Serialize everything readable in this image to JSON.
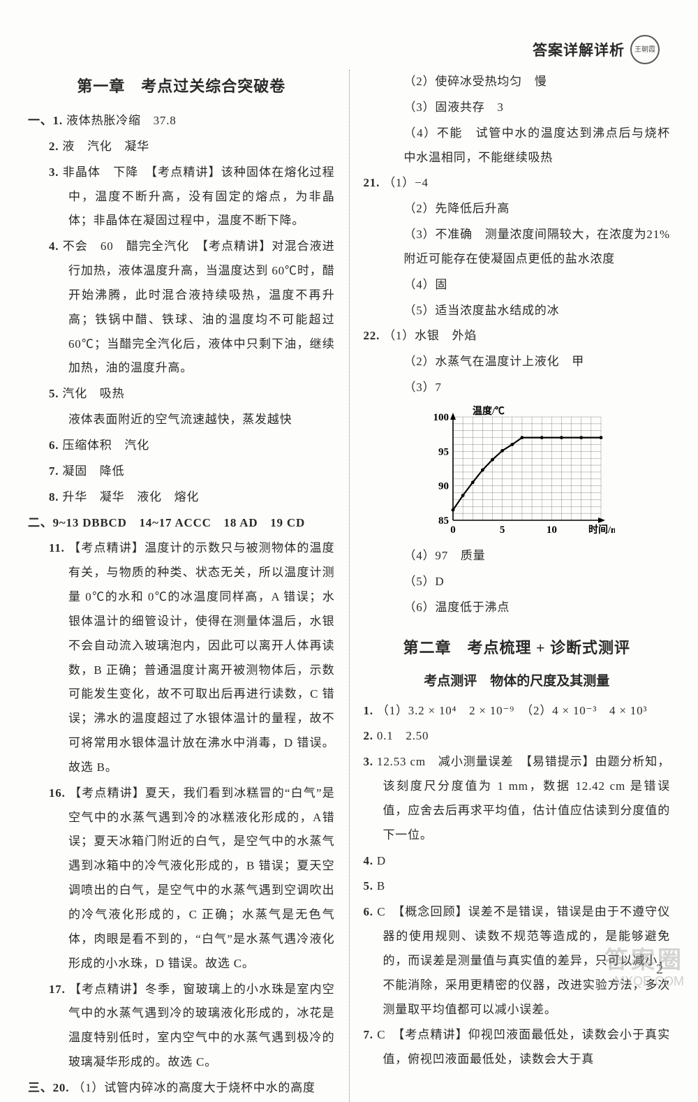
{
  "header": {
    "title": "答案详解详析",
    "seal": "王朝霞"
  },
  "left": {
    "chapter": "第一章　考点过关综合突破卷",
    "sec1_lead": "一、1. ",
    "q1": "液体热胀冷缩　37.8",
    "q2_lead": "2. ",
    "q2": "液　汽化　凝华",
    "q3_lead": "3. ",
    "q3": "非晶体　下降　【考点精讲】该种固体在熔化过程中，温度不断升高，没有固定的熔点，为非晶体；非晶体在凝固过程中，温度不断下降。",
    "q4_lead": "4. ",
    "q4": "不会　60　醋完全汽化　【考点精讲】对混合液进行加热，液体温度升高，当温度达到 60℃时，醋开始沸腾，此时混合液持续吸热，温度不再升高；铁锅中醋、铁球、油的温度均不可能超过60℃；当醋完全汽化后，液体中只剩下油，继续加热，油的温度升高。",
    "q5_lead": "5. ",
    "q5a": "汽化　吸热",
    "q5b": "液体表面附近的空气流速越快，蒸发越快",
    "q6_lead": "6. ",
    "q6": "压缩体积　汽化",
    "q7_lead": "7. ",
    "q7": "凝固　降低",
    "q8_lead": "8. ",
    "q8": "升华　凝华　液化　熔化",
    "sec2": "二、9~13 DBBCD　14~17 ACCC　18 AD　19 CD",
    "q11_lead": "11. ",
    "q11": "【考点精讲】温度计的示数只与被测物体的温度有关，与物质的种类、状态无关，所以温度计测量 0℃的水和 0℃的冰温度同样高，A 错误；水银体温计的细管设计，使得在测量体温后，水银不会自动流入玻璃泡内，因此可以离开人体再读数，B 正确；普通温度计离开被测物体后，示数可能发生变化，故不可取出后再进行读数，C 错误；沸水的温度超过了水银体温计的量程，故不可将常用水银体温计放在沸水中消毒，D 错误。故选 B。",
    "q16_lead": "16. ",
    "q16": "【考点精讲】夏天，我们看到冰糕冒的“白气”是空气中的水蒸气遇到冷的冰糕液化形成的，A错误；夏天冰箱门附近的白气，是空气中的水蒸气遇到冰箱中的冷气液化形成的，B 错误；夏天空调喷出的白气，是空气中的水蒸气遇到空调吹出的冷气液化形成的，C 正确；水蒸气是无色气体，肉眼是看不到的，“白气”是水蒸气遇冷液化形成的小水珠，D 错误。故选 C。",
    "q17_lead": "17. ",
    "q17": "【考点精讲】冬季，窗玻璃上的小水珠是室内空气中的水蒸气遇到冷的玻璃液化形成的，冰花是温度特别低时，室内空气中的水蒸气遇到极冷的玻璃凝华形成的。故选 C。",
    "sec3_lead": "三、20. ",
    "sec3": "（1）试管内碎冰的高度大于烧杯中水的高度"
  },
  "right": {
    "r20_2": "（2）使碎冰受热均匀　慢",
    "r20_3": "（3）固液共存　3",
    "r20_4": "（4）不能　试管中水的温度达到沸点后与烧杯中水温相同，不能继续吸热",
    "r21_lead": "21. ",
    "r21_1": "（1）−4",
    "r21_2": "（2）先降低后升高",
    "r21_3": "（3）不准确　测量浓度间隔较大，在浓度为21%附近可能存在使凝固点更低的盐水浓度",
    "r21_4": "（4）固",
    "r21_5": "（5）适当浓度盐水结成的冰",
    "r22_lead": "22. ",
    "r22_1": "（1）水银　外焰",
    "r22_2": "（2）水蒸气在温度计上液化　甲",
    "r22_3": "（3）7",
    "r22_4": "（4）97　质量",
    "r22_5": "（5）D",
    "r22_6": "（6）温度低于沸点",
    "chart": {
      "type": "line",
      "ylabel": "温度/℃",
      "xlabel": "时间/min",
      "ylim": [
        85,
        100
      ],
      "ytick": [
        85,
        90,
        95,
        100
      ],
      "xlim": [
        0,
        15
      ],
      "xtick": [
        0,
        5,
        10
      ],
      "points_x": [
        0,
        1,
        2,
        3,
        4,
        5,
        6,
        7,
        9,
        11,
        13,
        15
      ],
      "points_y": [
        86.5,
        88.6,
        90.5,
        92.3,
        93.8,
        95.1,
        96.0,
        97,
        97,
        97,
        97,
        97
      ],
      "line_color": "#000000",
      "grid_color": "#000000",
      "bg_color": "#ffffff",
      "title_fontsize": 14,
      "tick_fontsize": 15
    },
    "ch2_title": "第二章　考点梳理 + 诊断式测评",
    "ch2_sub": "考点测评　物体的尺度及其测量",
    "c2_1_lead": "1. ",
    "c2_1": "（1）3.2 × 10⁴　2 × 10⁻⁹　（2）4 × 10⁻³　4 × 10³",
    "c2_2_lead": "2. ",
    "c2_2": "0.1　2.50",
    "c2_3_lead": "3. ",
    "c2_3": "12.53 cm　减小测量误差　【易错提示】由题分析知，该刻度尺分度值为 1 mm，数据 12.42 cm 是错误值，应舍去后再求平均值，估计值应估读到分度值的下一位。",
    "c2_4_lead": "4. ",
    "c2_4": "D",
    "c2_5_lead": "5. ",
    "c2_5": "B",
    "c2_6_lead": "6. ",
    "c2_6": "C　【概念回顾】误差不是错误，错误是由于不遵守仪器的使用规则、读数不规范等造成的，是能够避免的，而误差是测量值与真实值的差异，只可以减小，不能消除，采用更精密的仪器，改进实验方法，多次测量取平均值都可以减小误差。",
    "c2_7_lead": "7. ",
    "c2_7": "C　【考点精讲】仰视凹液面最低处，读数会小于真实值，俯视凹液面最低处，读数会大于真"
  },
  "pagenum": "2",
  "watermark": {
    "line1": "答案圈",
    "line2": "MXQE.COM"
  }
}
